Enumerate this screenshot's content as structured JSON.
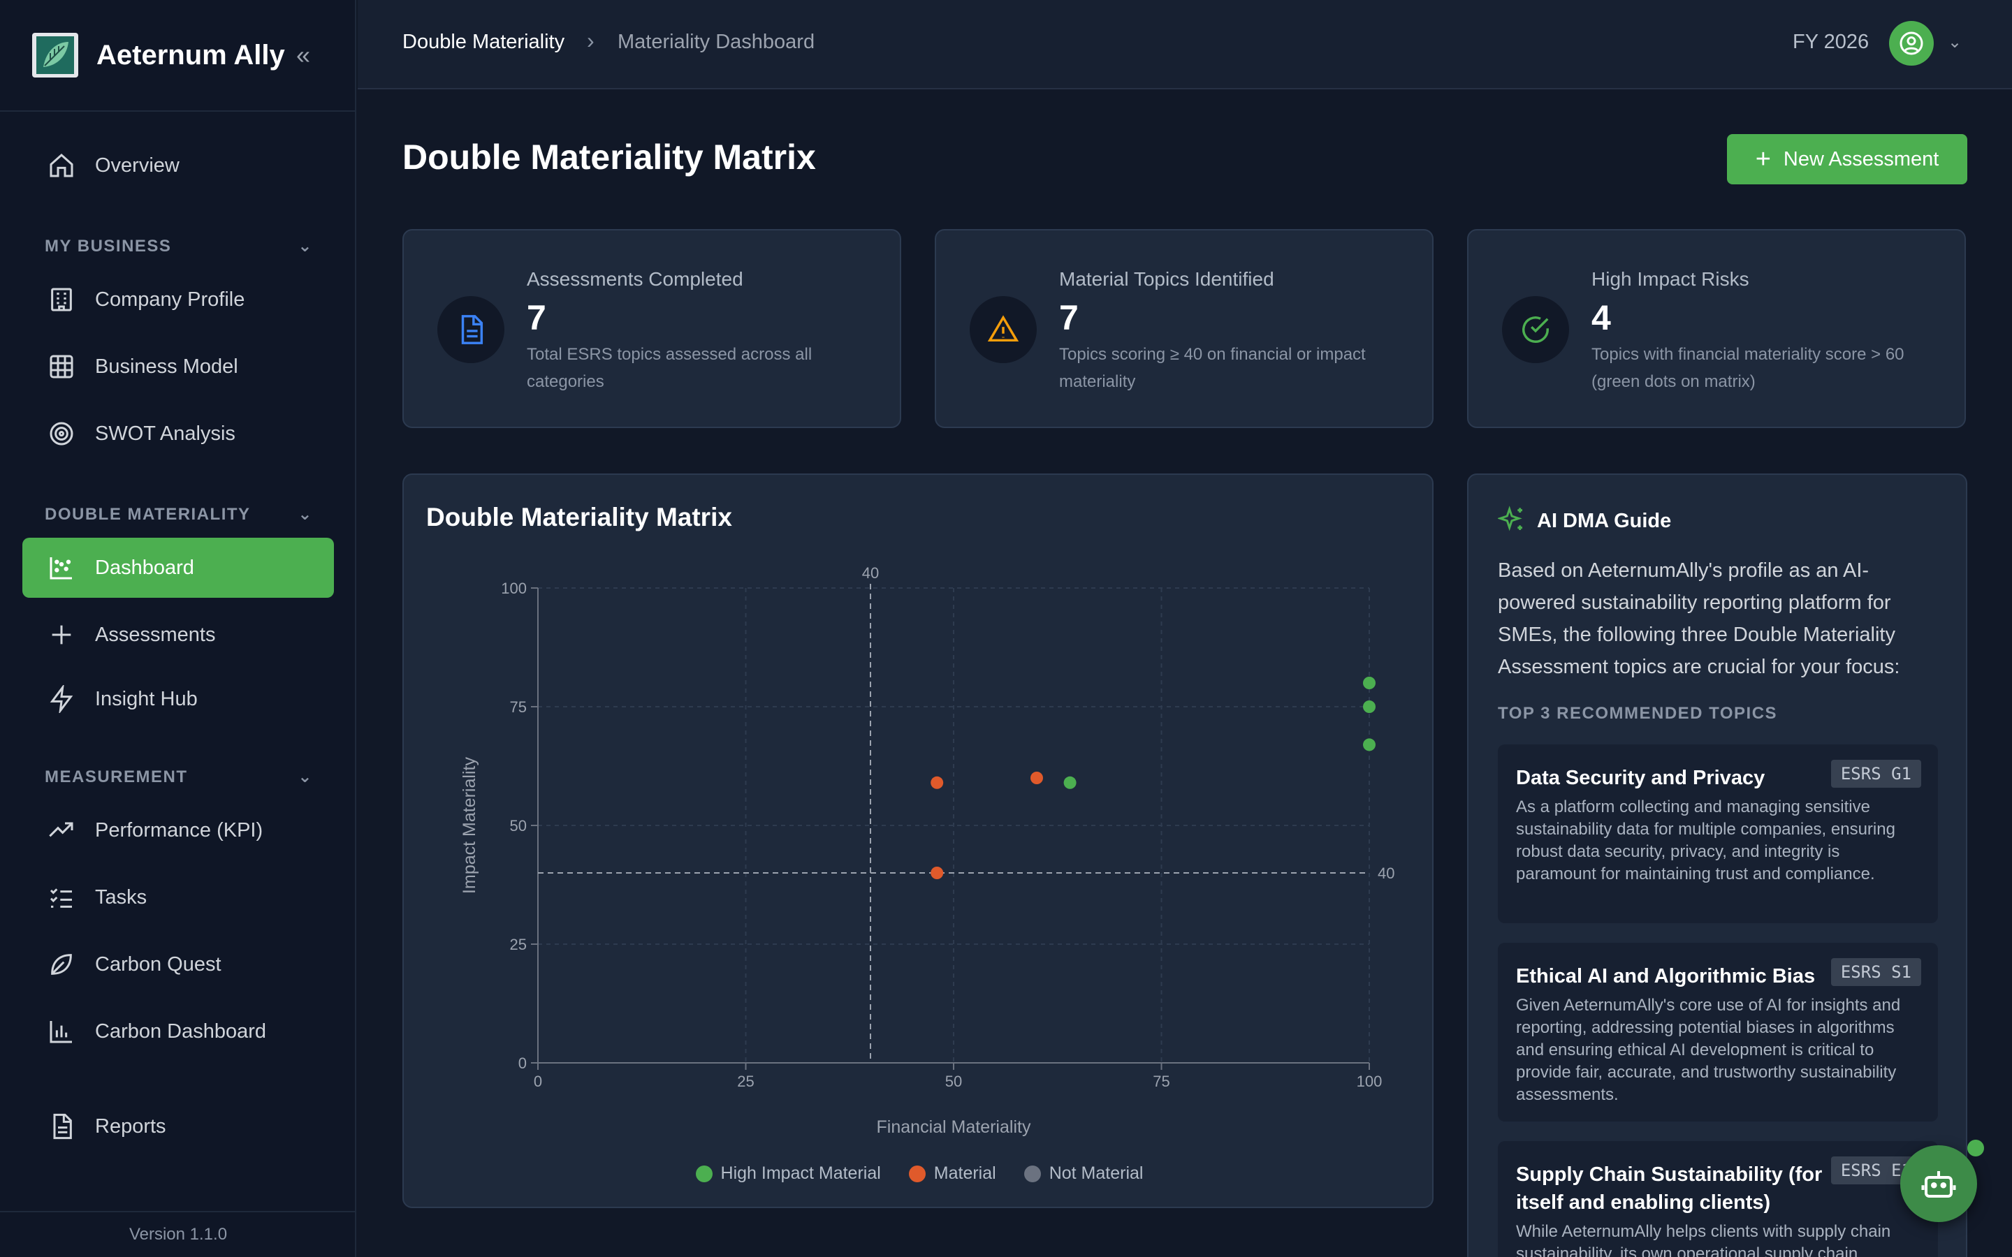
{
  "app": {
    "name": "Aeternum Ally",
    "version": "Version 1.1.0"
  },
  "sidebar": {
    "overview": "Overview",
    "sections": [
      {
        "title": "MY BUSINESS",
        "items": [
          "Company Profile",
          "Business Model",
          "SWOT Analysis"
        ]
      },
      {
        "title": "DOUBLE MATERIALITY",
        "items": [
          "Dashboard",
          "Assessments",
          "Insight Hub"
        ]
      },
      {
        "title": "MEASUREMENT",
        "items": [
          "Performance (KPI)",
          "Tasks",
          "Carbon Quest",
          "Carbon Dashboard"
        ]
      }
    ],
    "reports": "Reports",
    "active": "Dashboard"
  },
  "header": {
    "breadcrumb": [
      "Double Materiality",
      "Materiality Dashboard"
    ],
    "fiscal_year": "FY 2026"
  },
  "page": {
    "title": "Double Materiality Matrix",
    "new_button": "New Assessment"
  },
  "stats": [
    {
      "title": "Assessments Completed",
      "value": "7",
      "desc": "Total ESRS topics assessed across all categories",
      "icon": "document-icon",
      "color": "#3b82f6"
    },
    {
      "title": "Material Topics Identified",
      "value": "7",
      "desc": "Topics scoring ≥ 40 on financial or impact materiality",
      "icon": "warning-icon",
      "color": "#f59e0b"
    },
    {
      "title": "High Impact Risks",
      "value": "4",
      "desc": "Topics with financial materiality score > 60 (green dots on matrix)",
      "icon": "check-circle-icon",
      "color": "#4caf50"
    }
  ],
  "chart": {
    "title": "Double Materiality Matrix"
  },
  "chart_data": {
    "type": "scatter",
    "xlabel": "Financial Materiality",
    "ylabel": "Impact Materiality",
    "xlim": [
      0,
      100
    ],
    "ylim": [
      0,
      100
    ],
    "xticks": [
      "0",
      "25",
      "50",
      "75",
      "100"
    ],
    "yticks": [
      "0",
      "25",
      "50",
      "75",
      "100"
    ],
    "threshold_x": 40,
    "threshold_y": 40,
    "threshold_label_x": "40",
    "threshold_label_y": "40",
    "grid": true,
    "legend_position": "bottom",
    "series": [
      {
        "name": "High Impact Material",
        "color": "#4caf50",
        "points": [
          [
            100,
            80
          ],
          [
            100,
            75
          ],
          [
            100,
            67
          ],
          [
            64,
            59
          ]
        ]
      },
      {
        "name": "Material",
        "color": "#e05a2b",
        "points": [
          [
            48,
            59
          ],
          [
            60,
            60
          ],
          [
            48,
            40
          ]
        ]
      },
      {
        "name": "Not Material",
        "color": "#6b7280",
        "points": []
      }
    ]
  },
  "guide": {
    "title": "AI DMA Guide",
    "intro": "Based on AeternumAlly's profile as an AI-powered sustainability reporting platform for SMEs, the following three Double Materiality Assessment topics are crucial for your focus:",
    "subtitle": "TOP 3 RECOMMENDED TOPICS",
    "topics": [
      {
        "name": "Data Security and Privacy",
        "tag": "ESRS G1",
        "desc": "As a platform collecting and managing sensitive sustainability data for multiple companies, ensuring robust data security, privacy, and integrity is paramount for maintaining trust and compliance."
      },
      {
        "name": "Ethical AI and Algorithmic Bias",
        "tag": "ESRS S1",
        "desc": "Given AeternumAlly's core use of AI for insights and reporting, addressing potential biases in algorithms and ensuring ethical AI development is critical to provide fair, accurate, and trustworthy sustainability assessments."
      },
      {
        "name": "Supply Chain Sustainability (for itself and enabling clients)",
        "tag": "ESRS E1",
        "desc": "While AeternumAlly helps clients with supply chain sustainability, its own operational supply chain"
      }
    ]
  }
}
